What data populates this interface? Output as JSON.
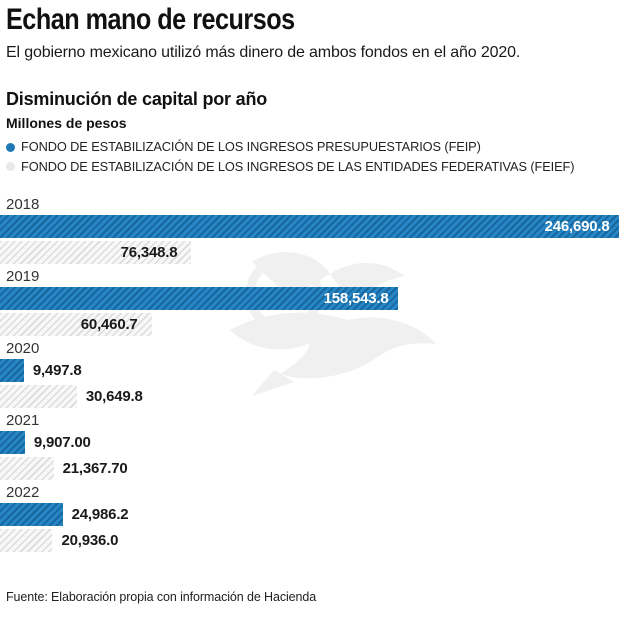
{
  "header": {
    "title": "Echan mano de recursos",
    "subtitle": "El gobierno mexicano utilizó más dinero de ambos fondos en el año 2020."
  },
  "chart_data": {
    "type": "bar",
    "orientation": "horizontal",
    "title": "Disminución de capital por año",
    "units": "Millones de pesos",
    "categories": [
      "2018",
      "2019",
      "2020",
      "2021",
      "2022"
    ],
    "series": [
      {
        "name": "FONDO DE ESTABILIZACIÓN DE LOS INGRESOS PRESUPUESTARIOS (FEIP)",
        "short_name": "FEIP",
        "color": "#2079b5",
        "values": [
          246690.8,
          158543.8,
          9497.8,
          9907.0,
          24986.2
        ],
        "value_labels": [
          "246,690.8",
          "158,543.8",
          "9,497.8",
          "9,907.00",
          "24,986.2"
        ]
      },
      {
        "name": "FONDO DE ESTABILIZACIÓN DE LOS INGRESOS DE LAS ENTIDADES FEDERATIVAS (FEIEF)",
        "short_name": "FEIEF",
        "color": "#e9e9e9",
        "values": [
          76348.8,
          60460.7,
          30649.8,
          21367.7,
          20936.0
        ],
        "value_labels": [
          "76,348.8",
          "60,460.7",
          "30,649.8",
          "21,367.70",
          "20,936.0"
        ]
      }
    ],
    "xlim": [
      0,
      246690.8
    ],
    "legend_position": "top-left",
    "grid": false,
    "watermark_icon": "eagle"
  },
  "footer": {
    "source": "Fuente: Elaboración propia con información de Hacienda"
  }
}
